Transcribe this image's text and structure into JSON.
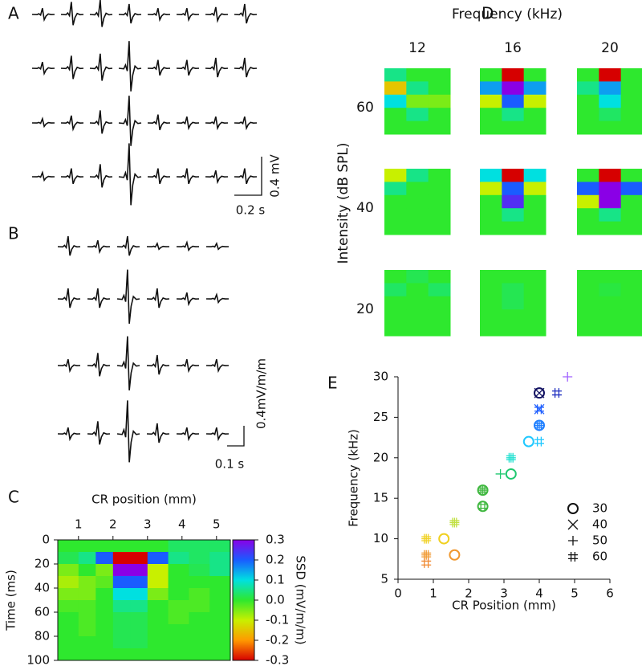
{
  "chart_data": [
    {
      "type": "traces",
      "label": "A",
      "scale_x": "0.2 s",
      "scale_y": "0.4 mV"
    },
    {
      "type": "traces",
      "label": "B",
      "scale_x": "0.1 s",
      "scale_y": "0.4mV/m/m"
    },
    {
      "type": "heatmap",
      "label": "C",
      "x_label": "CR position (mm)",
      "y_label": "Time (ms)",
      "xlim": [
        0.4,
        5.4
      ],
      "xticks": [
        1,
        2,
        3,
        4,
        5
      ],
      "x_axis": "top",
      "ylim": [
        0,
        100
      ],
      "yticks": [
        0,
        20,
        40,
        60,
        80,
        100
      ],
      "y_inverted": true,
      "x_edges": [
        0.4,
        1,
        1.5,
        2,
        2.5,
        3,
        3.6,
        4.2,
        4.8,
        5.4
      ],
      "y_edges": [
        0,
        10,
        20,
        30,
        40,
        50,
        60,
        70,
        80,
        90,
        100
      ],
      "values": [
        [
          0,
          0,
          0,
          0,
          0,
          0,
          0.03,
          0.03,
          0.03
        ],
        [
          0.02,
          0.05,
          0.2,
          -0.3,
          -0.3,
          0.2,
          0.05,
          0.03,
          0.05
        ],
        [
          -0.05,
          0,
          -0.05,
          0.3,
          0.3,
          -0.1,
          0,
          0.02,
          0.05
        ],
        [
          -0.08,
          -0.05,
          -0.03,
          0.2,
          0.2,
          -0.1,
          0,
          0,
          0
        ],
        [
          -0.05,
          -0.05,
          0,
          0.1,
          0.1,
          -0.05,
          0,
          -0.02,
          0
        ],
        [
          -0.02,
          -0.02,
          0,
          0.05,
          0.05,
          0,
          -0.02,
          -0.02,
          0
        ],
        [
          0,
          -0.02,
          0,
          0.02,
          0.02,
          0,
          -0.02,
          0,
          0
        ],
        [
          0,
          -0.02,
          0,
          0.02,
          0.02,
          0,
          0,
          0,
          0
        ],
        [
          0,
          0,
          0,
          0.02,
          0.02,
          0,
          0,
          0,
          0
        ],
        [
          0,
          0,
          0,
          0,
          0,
          0,
          0,
          0,
          0
        ]
      ],
      "colorbar": {
        "label": "SSD (mV/m/m)",
        "lim": [
          -0.3,
          0.3
        ],
        "ticks": [
          0.3,
          0.2,
          0.1,
          {
            "value": 0,
            "label": "0.0"
          },
          -0.1,
          -0.2,
          -0.3
        ]
      },
      "colormap": [
        "#d60000",
        "#ff9900",
        "#c8f000",
        "#2ee82e",
        "#00e0e0",
        "#1a5cff",
        "#8a00e6"
      ]
    },
    {
      "type": "heatmap-grid",
      "label": "D",
      "title": "Frequency (kHz)",
      "y_label": "Intensity (dB SPL)",
      "columns": [
        "12",
        "16",
        "20"
      ],
      "rows": [
        "60",
        "40",
        "20"
      ],
      "values": [
        [
          [
            [
              0.05,
              0,
              0
            ],
            [
              -0.15,
              0.05,
              0
            ],
            [
              0.1,
              -0.05,
              -0.05
            ],
            [
              0,
              0.05,
              0
            ],
            [
              0,
              0,
              0
            ]
          ],
          [
            [
              0,
              -0.3,
              0
            ],
            [
              0.15,
              0.3,
              0.15
            ],
            [
              -0.1,
              0.2,
              -0.1
            ],
            [
              0,
              0.05,
              0
            ],
            [
              0,
              0,
              0
            ]
          ],
          [
            [
              0,
              -0.3,
              0
            ],
            [
              0.05,
              0.15,
              0
            ],
            [
              0,
              0.1,
              0
            ],
            [
              0,
              0.03,
              0
            ],
            [
              0,
              0,
              0
            ]
          ]
        ],
        [
          [
            [
              -0.1,
              0.05,
              0
            ],
            [
              0.05,
              0,
              0
            ],
            [
              0,
              0,
              0
            ],
            [
              0,
              0,
              0
            ],
            [
              0,
              0,
              0
            ]
          ],
          [
            [
              0.1,
              -0.3,
              0.1
            ],
            [
              -0.1,
              0.2,
              -0.1
            ],
            [
              0,
              0.25,
              0
            ],
            [
              0,
              0.05,
              0
            ],
            [
              0,
              0,
              0
            ]
          ],
          [
            [
              0,
              -0.3,
              0
            ],
            [
              0.2,
              0.3,
              0.2
            ],
            [
              -0.1,
              0.3,
              0
            ],
            [
              0,
              0.05,
              0
            ],
            [
              0,
              0,
              0
            ]
          ]
        ],
        [
          [
            [
              0,
              0.02,
              0
            ],
            [
              0.03,
              0,
              0.03
            ],
            [
              0,
              0,
              0
            ],
            [
              0,
              0,
              0
            ],
            [
              0,
              0,
              0
            ]
          ],
          [
            [
              0,
              0,
              0
            ],
            [
              0,
              0.02,
              0
            ],
            [
              0,
              0.02,
              0
            ],
            [
              0,
              0,
              0
            ],
            [
              0,
              0,
              0
            ]
          ],
          [
            [
              0,
              0,
              0
            ],
            [
              0,
              0.01,
              0
            ],
            [
              0,
              0,
              0
            ],
            [
              0,
              0,
              0
            ],
            [
              0,
              0,
              0
            ]
          ]
        ]
      ]
    },
    {
      "type": "scatter",
      "label": "E",
      "x_label": "CR Position (mm)",
      "y_label": "Frequency (kHz)",
      "xlim": [
        0,
        6
      ],
      "xticks": [
        0,
        1,
        2,
        3,
        4,
        5,
        6
      ],
      "ylim": [
        5,
        30
      ],
      "yticks": [
        5,
        10,
        15,
        20,
        25,
        30
      ],
      "legend": "lower right",
      "series": [
        {
          "name": "30",
          "marker": "circle",
          "x": [
            4,
            4,
            3.7,
            3.2,
            2.4,
            2.4,
            1.3,
            1.6
          ],
          "values": [
            28,
            24,
            22,
            18,
            16,
            14,
            10,
            8
          ],
          "colors": [
            "#101060",
            "#2080ff",
            "#20c8ff",
            "#20c870",
            "#40b840",
            "#40b840",
            "#f0d020",
            "#f09830"
          ]
        },
        {
          "name": "40",
          "marker": "x",
          "x": [
            4,
            4
          ],
          "values": [
            28,
            26
          ],
          "colors": [
            "#101060",
            "#2060ff"
          ]
        },
        {
          "name": "50",
          "marker": "plus",
          "x": [
            4.8,
            4,
            3.2,
            2.9,
            2.4,
            1.6,
            0.8,
            0.8
          ],
          "values": [
            30,
            24,
            20,
            18,
            16,
            12,
            10,
            8
          ],
          "colors": [
            "#a060ff",
            "#2080ff",
            "#20e0d0",
            "#20c870",
            "#40b840",
            "#c0e040",
            "#f0d020",
            "#f09830"
          ]
        },
        {
          "name": "60",
          "marker": "hash",
          "x": [
            4.5,
            4,
            4,
            4,
            3.2,
            2.4,
            2.4,
            1.6,
            0.8,
            0.8,
            0.8
          ],
          "values": [
            28,
            26,
            24,
            22,
            20,
            16,
            14,
            12,
            10,
            8,
            7
          ],
          "colors": [
            "#2030c0",
            "#2060ff",
            "#2080ff",
            "#20c8ff",
            "#20e0d0",
            "#40b840",
            "#40b840",
            "#c0e040",
            "#f0d020",
            "#f09830",
            "#f08830"
          ]
        }
      ]
    }
  ]
}
